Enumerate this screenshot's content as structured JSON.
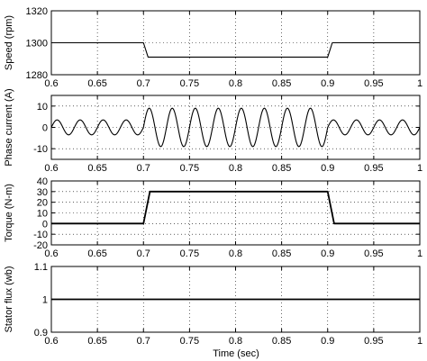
{
  "figure": {
    "xlabel": "Time (sec)"
  },
  "chart_data": [
    {
      "type": "line",
      "ylabel": "Speed (rpm)",
      "xlim": [
        0.6,
        1.0
      ],
      "ylim": [
        1280,
        1320
      ],
      "xticks": [
        "0.6",
        "0.65",
        "0.7",
        "0.75",
        "0.8",
        "0.85",
        "0.9",
        "0.95",
        "1"
      ],
      "yticks": [
        "1280",
        "1300",
        "1320"
      ],
      "grid": true,
      "series": [
        {
          "x": [
            0.6,
            0.7,
            0.705,
            0.9,
            0.905,
            1.0
          ],
          "y": [
            1300,
            1300,
            1291,
            1291,
            1300,
            1300
          ]
        }
      ]
    },
    {
      "type": "line",
      "ylabel": "Phase current (A)",
      "xlim": [
        0.6,
        1.0
      ],
      "ylim": [
        -15,
        15
      ],
      "xticks": [
        "0.6",
        "0.65",
        "0.7",
        "0.75",
        "0.8",
        "0.85",
        "0.9",
        "0.95",
        "1"
      ],
      "yticks": [
        "-10",
        "0",
        "10"
      ],
      "grid": true,
      "series": [
        {
          "signal": "sinusoid",
          "frequency_hz": 40,
          "segments": [
            {
              "x": [
                0.6,
                0.7
              ],
              "amplitude": 3.5
            },
            {
              "x": [
                0.7,
                0.9
              ],
              "amplitude": 9
            },
            {
              "x": [
                0.9,
                1.0
              ],
              "amplitude": 3.5
            }
          ]
        }
      ]
    },
    {
      "type": "line",
      "ylabel": "Torque (N-m)",
      "xlim": [
        0.6,
        1.0
      ],
      "ylim": [
        -20,
        40
      ],
      "xticks": [
        "0.6",
        "0.65",
        "0.7",
        "0.75",
        "0.8",
        "0.85",
        "0.9",
        "0.95",
        "1"
      ],
      "yticks": [
        "-20",
        "-10",
        "0",
        "10",
        "20",
        "30",
        "40"
      ],
      "grid": true,
      "series": [
        {
          "x": [
            0.6,
            0.7,
            0.707,
            0.9,
            0.907,
            1.0
          ],
          "y": [
            0,
            0,
            30,
            30,
            0,
            0
          ]
        }
      ]
    },
    {
      "type": "line",
      "ylabel": "Stator flux (wb)",
      "xlim": [
        0.6,
        1.0
      ],
      "ylim": [
        0.9,
        1.1
      ],
      "xticks": [
        "0.6",
        "0.65",
        "0.7",
        "0.75",
        "0.8",
        "0.85",
        "0.9",
        "0.95",
        "1"
      ],
      "yticks": [
        "0.9",
        "1",
        "1.1"
      ],
      "grid": true,
      "series": [
        {
          "x": [
            0.6,
            1.0
          ],
          "y": [
            1.0,
            1.0
          ]
        }
      ]
    }
  ]
}
